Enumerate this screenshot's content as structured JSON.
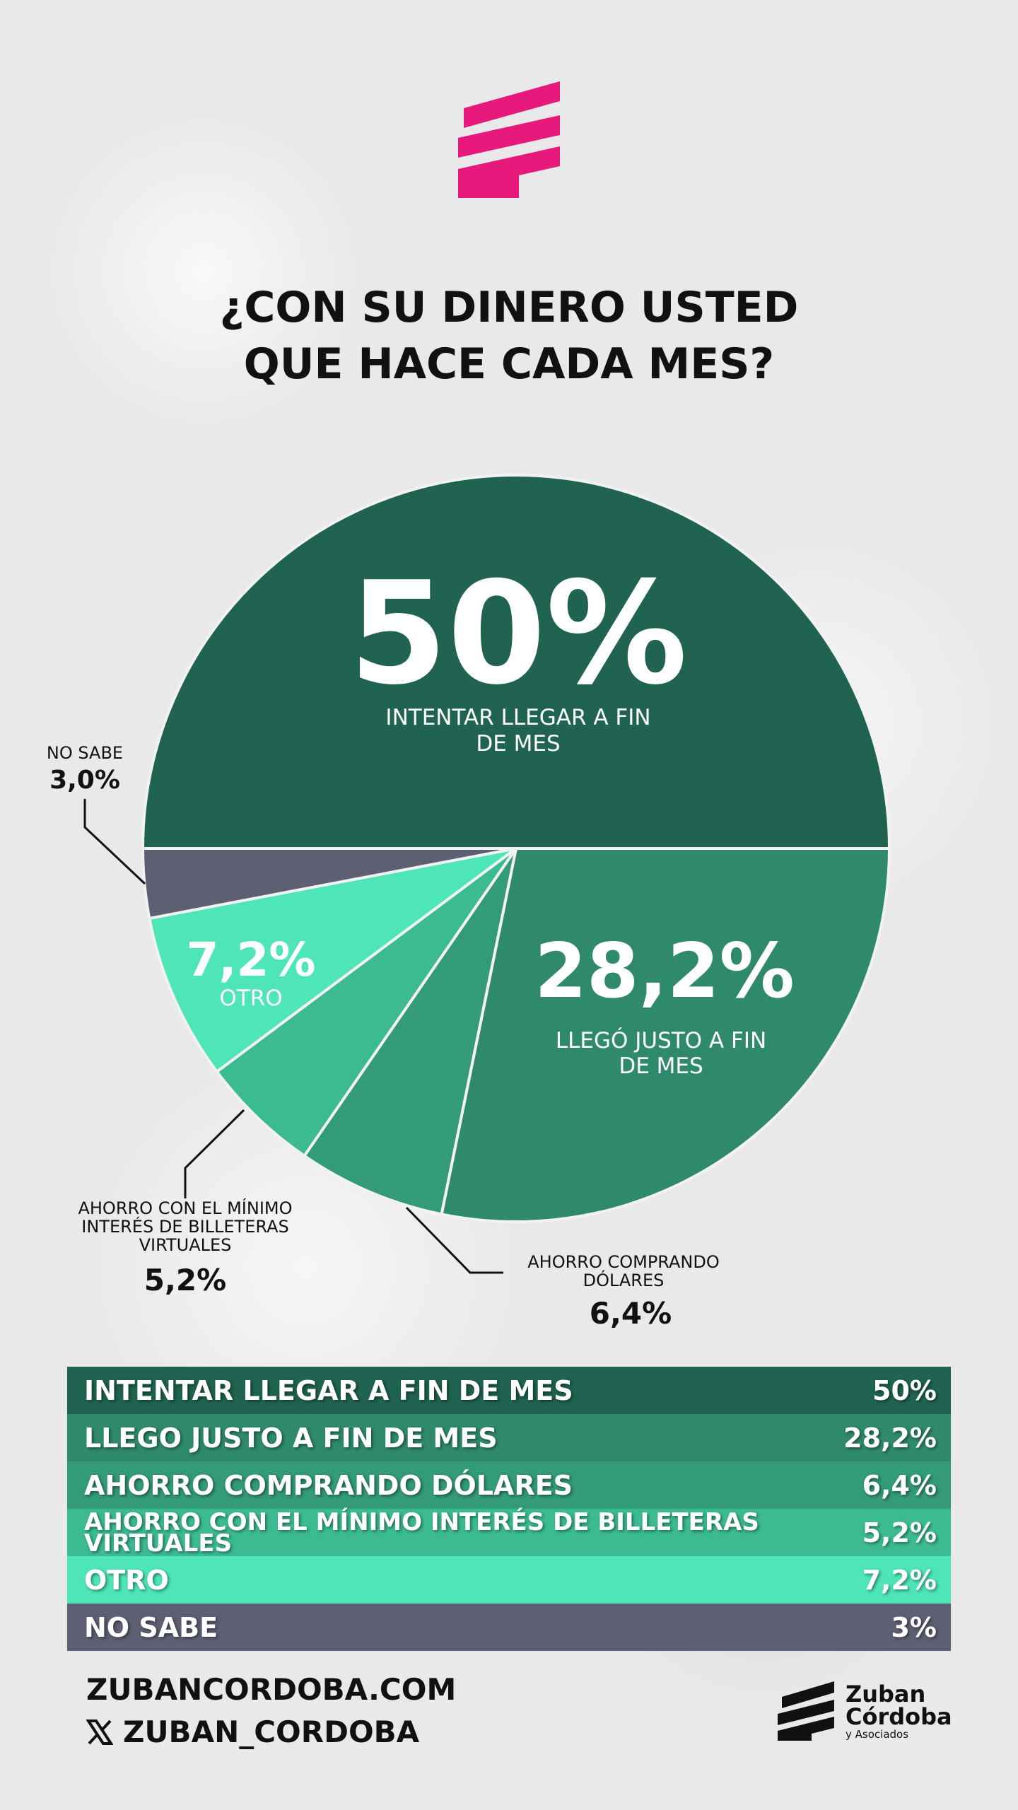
{
  "title_line1": "¿CON SU DINERO USTED",
  "title_line2": "QUE HACE CADA MES?",
  "chart_data": {
    "type": "pie",
    "title": "¿CON SU DINERO USTED QUE HACE CADA MES?",
    "categories": [
      "INTENTAR LLEGAR A FIN DE MES",
      "LLEGÓ JUSTO A FIN DE MES",
      "AHORRO COMPRANDO DÓLARES",
      "AHORRO CON EL MÍNIMO INTERÉS DE BILLETERAS VIRTUALES",
      "OTRO",
      "NO SABE"
    ],
    "values": [
      50,
      28.2,
      6.4,
      5.2,
      7.2,
      3.0
    ],
    "value_labels": [
      "50%",
      "28,2%",
      "6,4%",
      "5,2%",
      "7,2%",
      "3,0%"
    ],
    "colors": [
      "#1f6350",
      "#2f8a6d",
      "#339a7a",
      "#3cbb93",
      "#4ee6b7",
      "#5e5f73"
    ]
  },
  "pie_labels": {
    "s0_value": "50%",
    "s0_line1": "INTENTAR LLEGAR A FIN",
    "s0_line2": "DE MES",
    "s1_value": "28,2%",
    "s1_line1": "LLEGÓ JUSTO A FIN",
    "s1_line2": "DE MES",
    "s4_value": "7,2%",
    "s4_line1": "OTRO",
    "nosabe_line1": "NO SABE",
    "nosabe_value": "3,0%",
    "billeteras_line1": "AHORRO CON EL MÍNIMO",
    "billeteras_line2": "INTERÉS DE BILLETERAS",
    "billeteras_line3": "VIRTUALES",
    "billeteras_value": "5,2%",
    "dolares_line1": "AHORRO COMPRANDO",
    "dolares_line2": "DÓLARES",
    "dolares_value": "6,4%"
  },
  "table": [
    {
      "label": "INTENTAR LLEGAR A FIN DE MES",
      "value": "50%",
      "color": "#1f6350"
    },
    {
      "label": "LLEGO JUSTO A FIN DE MES",
      "value": "28,2%",
      "color": "#2f8a6d"
    },
    {
      "label": "AHORRO COMPRANDO DÓLARES",
      "value": "6,4%",
      "color": "#339a7a"
    },
    {
      "label": "AHORRO CON EL MÍNIMO INTERÉS DE BILLETERAS VIRTUALES",
      "value": "5,2%",
      "color": "#3cbb93"
    },
    {
      "label": "OTRO",
      "value": "7,2%",
      "color": "#4ee6b7"
    },
    {
      "label": "NO SABE",
      "value": "3%",
      "color": "#5e5f73"
    }
  ],
  "footer": {
    "website": "ZUBANCORDOBA.COM",
    "handle": "ZUBAN_CORDOBA",
    "x_icon": "x-logo-icon"
  },
  "brand": {
    "line1": "Zuban",
    "line2": "Córdoba",
    "line3": "y Asociados",
    "icon": "zuban-logo-icon"
  },
  "logo": {
    "icon": "zuban-pink-logo-icon",
    "color": "#e8197d"
  }
}
